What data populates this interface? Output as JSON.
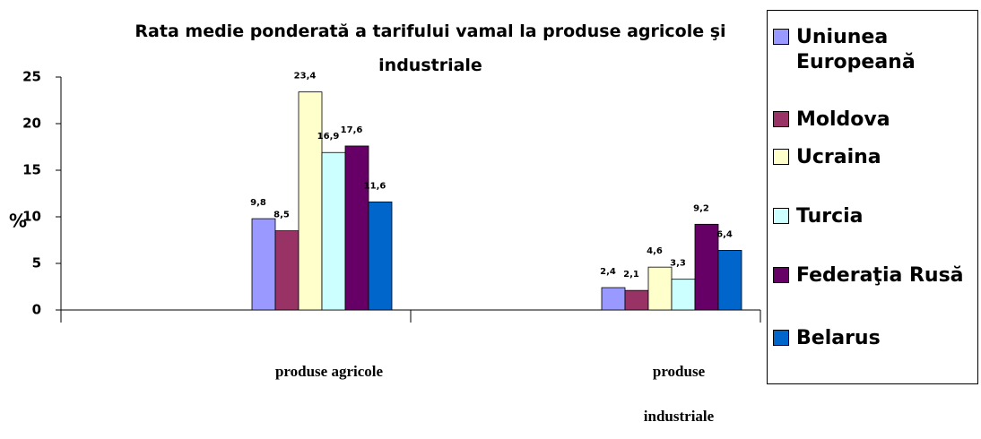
{
  "chart_data": {
    "type": "bar",
    "title": "Rata medie ponderată a tarifului  vamal la produse agricole şi industriale",
    "y_label": "%",
    "categories": [
      "produse agricole",
      "produse industriale"
    ],
    "series": [
      {
        "name": "Uniunea Europeană",
        "color": "#9999ff",
        "values": [
          9.8,
          2.4
        ],
        "value_labels": [
          "9,8",
          "2,4"
        ]
      },
      {
        "name": "Moldova",
        "color": "#993366",
        "values": [
          8.5,
          2.1
        ],
        "value_labels": [
          "8,5",
          "2,1"
        ]
      },
      {
        "name": "Ucraina",
        "color": "#ffffcc",
        "values": [
          23.4,
          4.6
        ],
        "value_labels": [
          "23,4",
          "4,6"
        ]
      },
      {
        "name": "Turcia",
        "color": "#ccffff",
        "values": [
          16.9,
          3.3
        ],
        "value_labels": [
          "16,9",
          "3,3"
        ]
      },
      {
        "name": "Federaţia Rusă",
        "color": "#660066",
        "values": [
          17.6,
          9.2
        ],
        "value_labels": [
          "17,6",
          "9,2"
        ]
      },
      {
        "name": "Belarus",
        "color": "#0066cc",
        "values": [
          11.6,
          6.4
        ],
        "value_labels": [
          "11,6",
          "6,4"
        ]
      }
    ],
    "ylim": [
      0,
      25
    ],
    "yticks": [
      0,
      5,
      10,
      15,
      20,
      25
    ],
    "legend": "right"
  }
}
